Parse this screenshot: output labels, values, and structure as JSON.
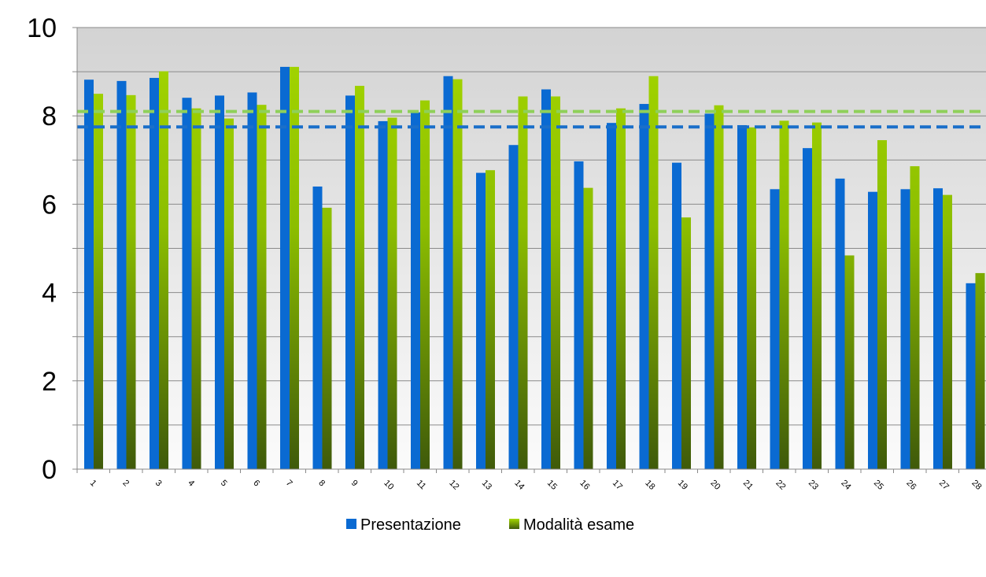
{
  "chart_data": {
    "type": "bar",
    "title": "",
    "xlabel": "",
    "ylabel": "",
    "ylim": [
      0,
      10
    ],
    "yticks": [
      0,
      2,
      4,
      6,
      8,
      10
    ],
    "grid": true,
    "legend_position": "bottom",
    "categories": [
      "1",
      "2",
      "3",
      "4",
      "5",
      "6",
      "7",
      "8",
      "9",
      "10",
      "11",
      "12",
      "13",
      "14",
      "15",
      "16",
      "17",
      "18",
      "19",
      "20",
      "21",
      "22",
      "23",
      "24",
      "25",
      "26",
      "27",
      "28"
    ],
    "series": [
      {
        "name": "Presentazione",
        "color": "#0a6ad2",
        "average": 7.75,
        "values": [
          8.82,
          8.79,
          8.86,
          8.41,
          8.46,
          8.53,
          9.11,
          6.4,
          8.46,
          7.88,
          8.08,
          8.9,
          6.71,
          7.34,
          8.6,
          6.97,
          7.84,
          8.27,
          6.94,
          8.05,
          7.79,
          6.34,
          7.27,
          6.58,
          6.28,
          6.34,
          6.36,
          4.21
        ]
      },
      {
        "name": "Modalità esame",
        "color": "#9fd100",
        "average": 8.1,
        "values": [
          8.5,
          8.47,
          9.01,
          8.17,
          7.94,
          8.25,
          9.11,
          5.92,
          8.68,
          7.96,
          8.35,
          8.83,
          6.77,
          8.44,
          8.44,
          6.37,
          8.17,
          8.9,
          5.7,
          8.24,
          7.74,
          7.89,
          7.85,
          4.84,
          7.45,
          6.86,
          6.21,
          4.44
        ]
      }
    ]
  }
}
